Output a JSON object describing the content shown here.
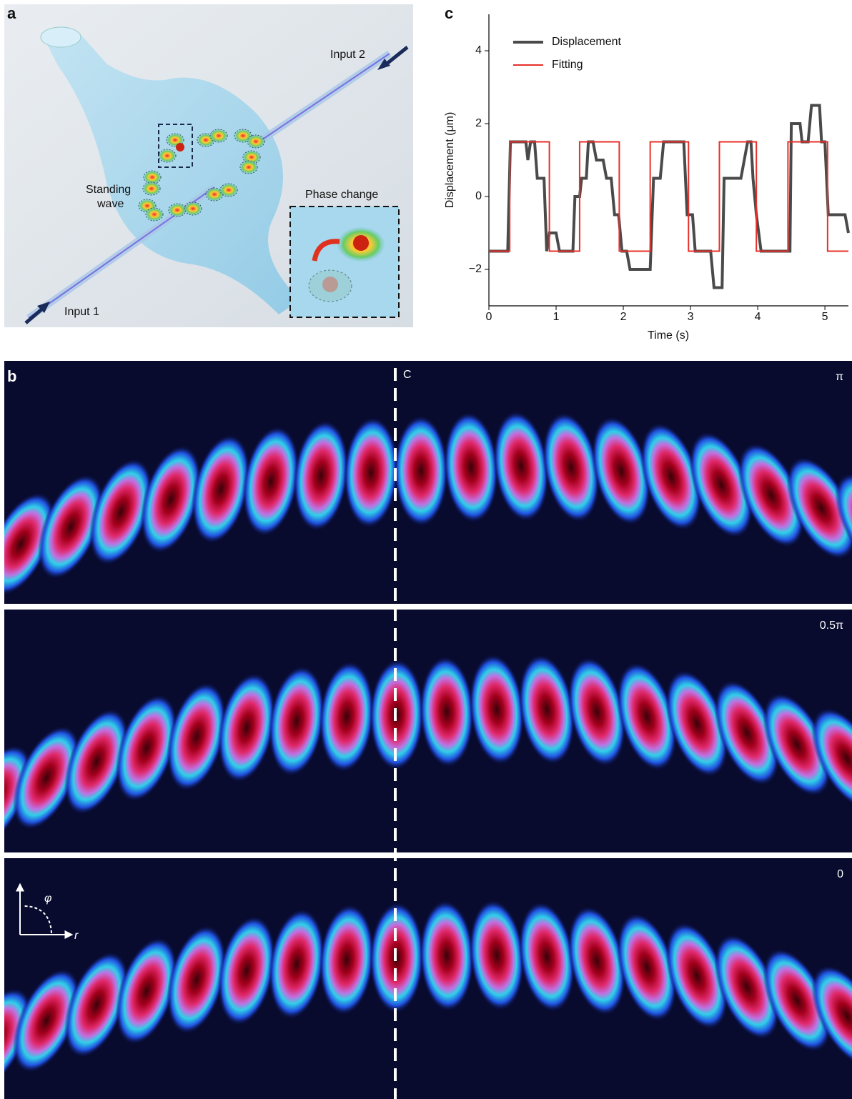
{
  "panel_labels": [
    "a",
    "b",
    "c"
  ],
  "illustration": {
    "input_1": "Input 1",
    "input_2": "Input 2",
    "standing_wave": [
      "Standing",
      "wave"
    ],
    "phase_change": "Phase change"
  },
  "field_maps": {
    "center_label": "C",
    "phases": [
      "π",
      "0.5π",
      "0"
    ],
    "axes": {
      "phi": "φ",
      "r": "r"
    }
  },
  "chart_data": {
    "type": "line",
    "xlabel": "Time (s)",
    "ylabel": "Displacement (μm)",
    "xlim": [
      0,
      5.35
    ],
    "ylim": [
      -3,
      5
    ],
    "xticks": [
      0,
      1,
      2,
      3,
      4,
      5
    ],
    "yticks": [
      {
        "value": -2,
        "label": "−2"
      },
      0,
      2,
      4
    ],
    "legend": "upper left",
    "series": [
      {
        "name": "Displacement",
        "color": "#4a4a4a",
        "x": [
          0,
          0.28,
          0.32,
          0.55,
          0.58,
          0.62,
          0.68,
          0.72,
          0.82,
          0.86,
          0.9,
          1.0,
          1.05,
          1.25,
          1.28,
          1.35,
          1.38,
          1.45,
          1.48,
          1.55,
          1.6,
          1.7,
          1.75,
          1.82,
          1.87,
          1.93,
          1.98,
          2.05,
          2.1,
          2.4,
          2.45,
          2.55,
          2.6,
          2.9,
          2.95,
          3.03,
          3.07,
          3.3,
          3.35,
          3.47,
          3.5,
          3.75,
          3.8,
          3.85,
          3.9,
          3.93,
          3.98,
          4.05,
          4.48,
          4.5,
          4.63,
          4.66,
          4.75,
          4.8,
          4.92,
          4.95,
          5.0,
          5.05,
          5.3,
          5.35
        ],
        "values": [
          -1.5,
          -1.5,
          1.5,
          1.5,
          1.0,
          1.5,
          1.5,
          0.5,
          0.5,
          -1.5,
          -1.0,
          -1.0,
          -1.5,
          -1.5,
          0,
          0,
          0.5,
          0.5,
          1.5,
          1.5,
          1.0,
          1.0,
          0.5,
          0.5,
          -0.5,
          -0.5,
          -1.5,
          -1.5,
          -2.0,
          -2.0,
          0.5,
          0.5,
          1.5,
          1.5,
          -0.5,
          -0.5,
          -1.5,
          -1.5,
          -2.5,
          -2.5,
          0.5,
          0.5,
          1.0,
          1.5,
          1.5,
          0.5,
          -0.5,
          -1.5,
          -1.5,
          2.0,
          2.0,
          1.5,
          1.5,
          2.5,
          2.5,
          1.5,
          1.5,
          -0.5,
          -0.5,
          -1.0
        ]
      },
      {
        "name": "Fitting",
        "color": "#e8302a",
        "x": [
          0,
          0.31,
          0.31,
          0.9,
          0.9,
          1.35,
          1.35,
          1.94,
          1.94,
          2.4,
          2.4,
          2.97,
          2.97,
          3.43,
          3.43,
          3.98,
          3.98,
          4.45,
          4.45,
          5.04,
          5.04,
          5.35
        ],
        "values": [
          -1.5,
          -1.5,
          1.5,
          1.5,
          -1.5,
          -1.5,
          1.5,
          1.5,
          -1.5,
          -1.5,
          1.5,
          1.5,
          -1.5,
          -1.5,
          1.5,
          1.5,
          -1.5,
          -1.5,
          1.5,
          1.5,
          -1.5,
          -1.5
        ]
      }
    ]
  }
}
